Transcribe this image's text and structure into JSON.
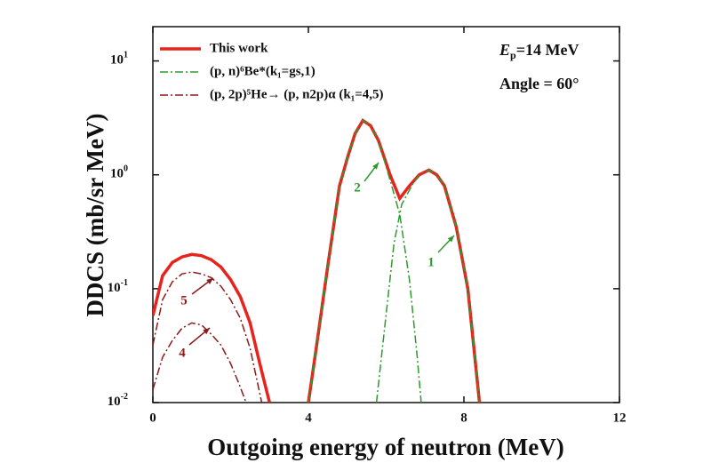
{
  "chart_data": {
    "type": "line",
    "xlabel": "Outgoing energy of neutron (MeV)",
    "ylabel": "DDCS (mb/sr MeV)",
    "xlim": [
      0,
      12
    ],
    "ylim": [
      0.01,
      20
    ],
    "yscale": "log",
    "xticks": [
      0,
      4,
      8,
      12
    ],
    "yticks": [
      {
        "value": 0.01,
        "label": "10",
        "exponent": "-2"
      },
      {
        "value": 0.1,
        "label": "10",
        "exponent": "-1"
      },
      {
        "value": 1,
        "label": "10",
        "exponent": "0"
      },
      {
        "value": 10,
        "label": "10",
        "exponent": "1"
      }
    ],
    "energy_label": {
      "symbol": "E",
      "subscript": "p",
      "text": "=14 MeV"
    },
    "angle_label": "Angle = 60°",
    "series": [
      {
        "name": "This work",
        "color": "#e8221c",
        "style": "solid",
        "x": [
          0,
          0.25,
          0.5,
          0.75,
          1,
          1.25,
          1.5,
          1.75,
          2,
          2.25,
          2.5,
          2.75,
          3,
          3.5,
          4,
          4.2,
          4.5,
          4.8,
          5,
          5.2,
          5.4,
          5.6,
          5.8,
          6.1,
          6.35,
          6.6,
          6.85,
          7.1,
          7.3,
          7.5,
          7.8,
          8.1,
          8.4
        ],
        "values": [
          0.058,
          0.13,
          0.17,
          0.19,
          0.2,
          0.195,
          0.18,
          0.155,
          0.12,
          0.085,
          0.05,
          0.022,
          0.01,
          null,
          0.01,
          0.03,
          0.16,
          0.8,
          1.4,
          2.3,
          3.0,
          2.7,
          2.0,
          1.0,
          0.62,
          0.8,
          1.0,
          1.1,
          1.0,
          0.8,
          0.35,
          0.1,
          0.01
        ]
      },
      {
        "name": "(p, n)⁶Be*(k₁=gs,1)",
        "color": "#2e9a2e",
        "style": "dash-dot",
        "curves": [
          {
            "label": "2",
            "x": [
              4,
              4.2,
              4.5,
              4.8,
              5,
              5.2,
              5.4,
              5.6,
              5.8,
              6.1,
              6.35,
              6.6,
              6.8,
              6.9
            ],
            "values": [
              0.01,
              0.03,
              0.16,
              0.8,
              1.4,
              2.3,
              3.0,
              2.7,
              2.0,
              0.9,
              0.45,
              0.12,
              0.025,
              0.01
            ]
          },
          {
            "label": "1",
            "x": [
              5.75,
              6.0,
              6.2,
              6.4,
              6.7,
              6.85,
              7.1,
              7.3,
              7.5,
              7.8,
              8.1,
              8.4
            ],
            "values": [
              0.01,
              0.06,
              0.25,
              0.55,
              0.85,
              1.0,
              1.1,
              1.0,
              0.8,
              0.35,
              0.1,
              0.01
            ]
          }
        ]
      },
      {
        "name": "(p, 2p)⁵He→ (p, n2p)α (k₁=4,5)",
        "color": "#8b1a1a",
        "style": "dash-dot",
        "curves": [
          {
            "label": "5",
            "x": [
              0,
              0.25,
              0.5,
              0.75,
              1,
              1.25,
              1.5,
              1.75,
              2,
              2.25,
              2.5,
              2.8
            ],
            "values": [
              0.032,
              0.08,
              0.115,
              0.135,
              0.14,
              0.135,
              0.125,
              0.105,
              0.08,
              0.055,
              0.03,
              0.01
            ]
          },
          {
            "label": "4",
            "x": [
              0,
              0.25,
              0.5,
              0.75,
              1,
              1.25,
              1.5,
              1.75,
              2,
              2.2,
              2.4
            ],
            "values": [
              0.013,
              0.025,
              0.035,
              0.045,
              0.05,
              0.048,
              0.04,
              0.032,
              0.022,
              0.015,
              0.01
            ]
          }
        ]
      }
    ]
  }
}
